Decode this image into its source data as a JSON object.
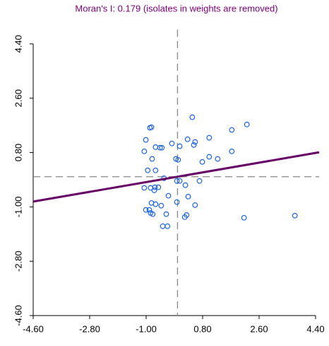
{
  "chart_data": {
    "type": "scatter",
    "title": "Moran's I: 0.179 (isolates in weights are removed)",
    "x": [
      0.47,
      2.21,
      -0.83,
      -0.88,
      1.73,
      -1.01,
      0.32,
      1.01,
      0.56,
      0.52,
      -0.18,
      0.07,
      -0.7,
      -0.5,
      -0.56,
      -1.06,
      1.73,
      -0.81,
      -0.05,
      0.02,
      1.01,
      1.28,
      0.79,
      -0.95,
      -0.7,
      -0.43,
      -0.02,
      0.07,
      0.25,
      0.7,
      -1.06,
      -0.86,
      -0.72,
      -0.61,
      -0.74,
      -0.29,
      0.34,
      -0.83,
      -0.7,
      -0.52,
      -0.02,
      0.56,
      -1.01,
      -0.9,
      -0.86,
      -0.79,
      -0.36,
      0.29,
      0.23,
      2.12,
      3.74,
      -0.47,
      -0.32
    ],
    "values": [
      1.97,
      1.73,
      1.64,
      1.62,
      1.55,
      1.22,
      1.24,
      1.29,
      1.15,
      1.05,
      1.1,
      1.01,
      0.98,
      0.96,
      0.96,
      0.84,
      0.84,
      0.59,
      0.59,
      0.56,
      0.66,
      0.59,
      0.49,
      0.21,
      0.21,
      -0.05,
      -0.14,
      -0.14,
      -0.28,
      -0.14,
      -0.37,
      -0.37,
      -0.35,
      -0.35,
      -0.45,
      -0.63,
      -0.66,
      -0.87,
      -0.91,
      -0.96,
      -0.84,
      -0.94,
      -1.1,
      -1.1,
      -1.2,
      -1.24,
      -1.24,
      -1.27,
      -1.34,
      -1.36,
      -1.29,
      -1.64,
      -1.64
    ],
    "color": "#1e64e6",
    "fit_slope": 0.179,
    "fit_color": "#660066",
    "reference_x": 0,
    "reference_y": 0,
    "xlim": [
      -4.6,
      4.4
    ],
    "xticks": [
      {
        "value": -4.6,
        "label": "-4.60"
      },
      {
        "value": -2.8,
        "label": "-2.80"
      },
      {
        "value": -1,
        "label": "-1.00"
      },
      {
        "value": 0.8,
        "label": "0.80"
      },
      {
        "value": 2.6,
        "label": "2.60"
      },
      {
        "value": 4.4,
        "label": "4.40"
      }
    ],
    "ylim": [
      -4.6,
      4.4
    ],
    "yticks": [
      {
        "value": -4.6,
        "label": "-4.60"
      },
      {
        "value": -2.8,
        "label": "-2.80"
      },
      {
        "value": -1,
        "label": "-1.00"
      },
      {
        "value": 0.8,
        "label": "0.80"
      },
      {
        "value": 2.6,
        "label": "2.60"
      },
      {
        "value": 4.4,
        "label": "4.40"
      }
    ]
  }
}
